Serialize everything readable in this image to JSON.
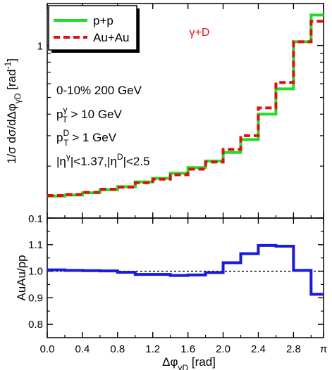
{
  "chart_data": [
    {
      "type": "line",
      "panel": "top",
      "ylabel_main": "1/σ dσ/dΔφ",
      "ylabel_sub": "γD",
      "ylabel_unit_pre": " [rad",
      "ylabel_unit_sup": "-1",
      "ylabel_unit_post": "]",
      "yscale": "log",
      "ylim": [
        0.1,
        1.75
      ],
      "y_ticks": [
        {
          "value": 0.1,
          "label": "0.1"
        },
        {
          "value": 1,
          "label": "1"
        }
      ],
      "xlim": [
        0,
        3.14159
      ],
      "x_bin_edges": [
        0,
        0.2,
        0.4,
        0.6,
        0.8,
        1.0,
        1.2,
        1.4,
        1.6,
        1.8,
        2.0,
        2.2,
        2.4,
        2.6,
        2.8,
        3.0,
        3.14159
      ],
      "series": [
        {
          "name": "p+p",
          "color": "#22dd22",
          "style": "solid",
          "values": [
            0.134,
            0.136,
            0.14,
            0.146,
            0.152,
            0.162,
            0.17,
            0.182,
            0.196,
            0.214,
            0.24,
            0.285,
            0.4,
            0.56,
            1.05,
            1.5
          ]
        },
        {
          "name": "Au+Au",
          "color": "#dd1111",
          "style": "dashed",
          "values": [
            0.135,
            0.137,
            0.141,
            0.147,
            0.151,
            0.16,
            0.168,
            0.178,
            0.192,
            0.211,
            0.25,
            0.3,
            0.435,
            0.61,
            1.05,
            1.38
          ]
        }
      ],
      "legend": {
        "placement": "top-left"
      },
      "annotations": {
        "reaction": "γ+D",
        "centrality": "0-10% 200 GeV",
        "cut1_base": "p",
        "cut1_sup": "γ",
        "cut1_sub": "T",
        "cut1_rest": " > 10 GeV",
        "cut2_base": "p",
        "cut2_sup": "D",
        "cut2_sub": "T",
        "cut2_rest": " > 1 GeV",
        "cut3_a": "|η",
        "cut3_a_sup": "γ",
        "cut3_b": "|<1.37,|η",
        "cut3_b_sup": "D",
        "cut3_c": "|<2.5"
      }
    },
    {
      "type": "line",
      "panel": "bottom",
      "ylabel": "AuAu/pp",
      "ylim": [
        0.75,
        1.2
      ],
      "y_ticks": [
        {
          "value": 0.8,
          "label": "0.8"
        },
        {
          "value": 0.9,
          "label": "0.9"
        },
        {
          "value": 1.0,
          "label": "1.0"
        },
        {
          "value": 1.1,
          "label": "1.1"
        }
      ],
      "xlim": [
        0,
        3.14159
      ],
      "x_ticks": [
        {
          "value": 0.0,
          "label": "0.0"
        },
        {
          "value": 0.4,
          "label": "0.4"
        },
        {
          "value": 0.8,
          "label": "0.8"
        },
        {
          "value": 1.2,
          "label": "1.2"
        },
        {
          "value": 1.6,
          "label": "1.6"
        },
        {
          "value": 2.0,
          "label": "2.0"
        },
        {
          "value": 2.4,
          "label": "2.4"
        },
        {
          "value": 2.8,
          "label": "2.8"
        },
        {
          "value": 3.14159,
          "label": "π"
        }
      ],
      "xlabel_main": "Δφ",
      "xlabel_sub": "γD",
      "xlabel_unit": " [rad]",
      "reference_line": 1.0,
      "x_bin_edges": [
        0,
        0.2,
        0.4,
        0.6,
        0.8,
        1.0,
        1.2,
        1.4,
        1.6,
        1.8,
        2.0,
        2.2,
        2.4,
        2.6,
        2.8,
        3.0,
        3.14159
      ],
      "series": [
        {
          "name": "AuAu/pp",
          "color": "#1a1adf",
          "style": "solid",
          "values": [
            1.005,
            1.003,
            1.002,
            1.001,
            0.996,
            0.988,
            0.988,
            0.984,
            0.986,
            0.995,
            1.032,
            1.066,
            1.097,
            1.094,
            1.003,
            0.913
          ]
        }
      ]
    }
  ]
}
